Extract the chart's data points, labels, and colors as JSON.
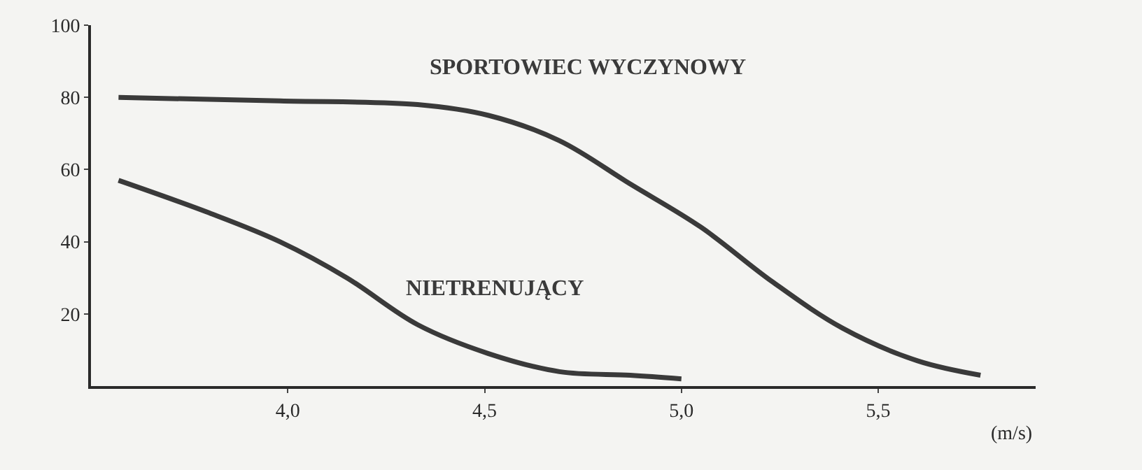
{
  "chart_data": {
    "type": "line",
    "xlabel": "(m/s)",
    "x": [
      3.57,
      3.8,
      3.98,
      4.15,
      4.33,
      4.51,
      4.69,
      4.87,
      5.0
    ],
    "series": [
      {
        "name": "NIETRENUJĄCY",
        "color": "#3a3a3a",
        "values": [
          57,
          48,
          40,
          30,
          17,
          9,
          4,
          3,
          2
        ]
      },
      {
        "name": "SPORTOWIEC WYCZYNOWY",
        "color": "#3a3a3a",
        "x": [
          3.57,
          3.98,
          4.33,
          4.51,
          4.69,
          4.87,
          5.05,
          5.23,
          5.41,
          5.6,
          5.76
        ],
        "values": [
          80,
          79,
          78,
          75,
          68,
          56,
          44,
          29,
          16,
          7,
          3
        ]
      }
    ],
    "xlim": [
      3.5,
      5.9
    ],
    "ylim": [
      0,
      100
    ],
    "xticks": [
      {
        "value": 4.0,
        "label": "4,0"
      },
      {
        "value": 4.5,
        "label": "4,5"
      },
      {
        "value": 5.0,
        "label": "5,0"
      },
      {
        "value": 5.5,
        "label": "5,5"
      }
    ],
    "yticks": [
      20,
      40,
      60,
      80,
      100
    ],
    "grid": false,
    "marker": "none",
    "line_style": "solid"
  }
}
